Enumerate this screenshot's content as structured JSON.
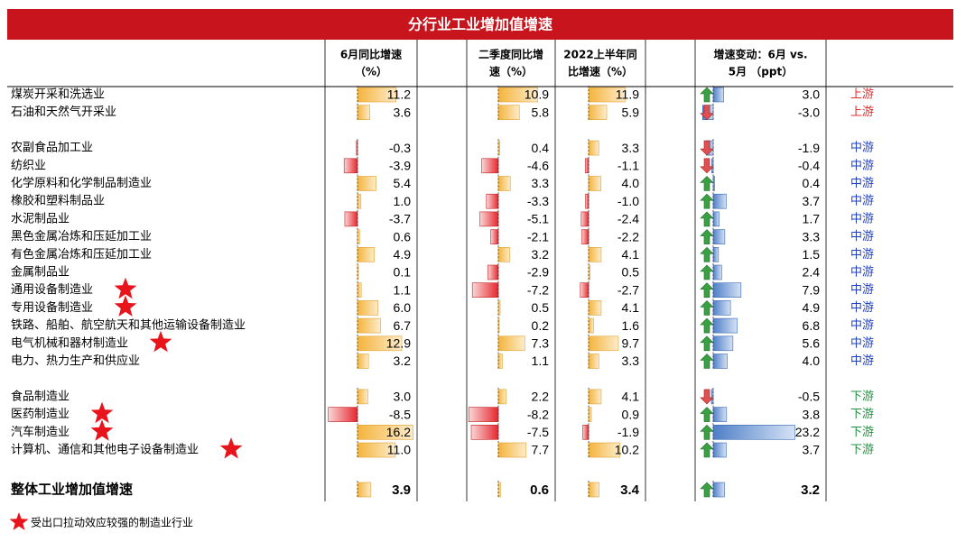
{
  "header": {
    "title": "分行业工业增加值增速",
    "columns": [
      [
        "6月同比增速",
        "（%）"
      ],
      [
        "二季度同比增",
        "速（%）"
      ],
      [
        "2022上半年同",
        "比增速（%）"
      ],
      [
        "增速变动：6月 vs.",
        "5月 （ppt）"
      ]
    ]
  },
  "groups": [
    {
      "rows": [
        {
          "name": "煤炭开采和洗选业",
          "values": [
            "11.2",
            "10.9",
            "11.9",
            "3.0"
          ],
          "tier": "上游"
        },
        {
          "name": "石油和天然气开采业",
          "values": [
            "3.6",
            "5.8",
            "5.9",
            "-3.0"
          ],
          "tier": "上游"
        }
      ]
    },
    {
      "rows": [
        {
          "name": "农副食品加工业",
          "values": [
            "-0.3",
            "0.4",
            "3.3",
            "-1.9"
          ],
          "tier": "中游"
        },
        {
          "name": "纺织业",
          "values": [
            "-3.9",
            "-4.6",
            "-1.1",
            "-0.4"
          ],
          "tier": "中游"
        },
        {
          "name": "化学原料和化学制品制造业",
          "values": [
            "5.4",
            "3.3",
            "4.0",
            "0.4"
          ],
          "tier": "中游"
        },
        {
          "name": "橡胶和塑料制品业",
          "values": [
            "1.0",
            "-3.3",
            "-1.0",
            "3.7"
          ],
          "tier": "中游"
        },
        {
          "name": "水泥制品业",
          "values": [
            "-3.7",
            "-5.1",
            "-2.4",
            "1.7"
          ],
          "tier": "中游"
        },
        {
          "name": "黑色金属冶炼和压延加工业",
          "values": [
            "0.6",
            "-2.1",
            "-2.2",
            "3.3"
          ],
          "tier": "中游"
        },
        {
          "name": "有色金属冶炼和压延加工业",
          "values": [
            "4.9",
            "3.2",
            "4.1",
            "1.5"
          ],
          "tier": "中游"
        },
        {
          "name": "金属制品业",
          "values": [
            "0.1",
            "-2.9",
            "0.5",
            "2.4"
          ],
          "tier": "中游"
        },
        {
          "name": "通用设备制造业",
          "values": [
            "1.1",
            "-7.2",
            "-2.7",
            "7.9"
          ],
          "tier": "中游",
          "star": true
        },
        {
          "name": "专用设备制造业",
          "values": [
            "6.0",
            "0.5",
            "4.1",
            "4.9"
          ],
          "tier": "中游",
          "star": true
        },
        {
          "name": "铁路、船舶、航空航天和其他运输设备制造业",
          "values": [
            "6.7",
            "0.2",
            "1.6",
            "6.8"
          ],
          "tier": "中游"
        },
        {
          "name": "电气机械和器材制造业",
          "values": [
            "12.9",
            "7.3",
            "9.7",
            "5.6"
          ],
          "tier": "中游",
          "star": true
        },
        {
          "name": "电力、热力生产和供应业",
          "values": [
            "3.2",
            "1.1",
            "3.3",
            "4.0"
          ],
          "tier": "中游"
        }
      ]
    },
    {
      "rows": [
        {
          "name": "食品制造业",
          "values": [
            "3.0",
            "2.2",
            "4.1",
            "-0.5"
          ],
          "tier": "下游"
        },
        {
          "name": "医药制造业",
          "values": [
            "-8.5",
            "-8.2",
            "0.9",
            "3.8"
          ],
          "tier": "下游",
          "star": true
        },
        {
          "name": "汽车制造业",
          "values": [
            "16.2",
            "-7.5",
            "-1.9",
            "23.2"
          ],
          "tier": "下游",
          "star": true
        },
        {
          "name": "计算机、通信和其他电子设备制造业",
          "values": [
            "11.0",
            "7.7",
            "10.2",
            "3.7"
          ],
          "tier": "下游",
          "star": true
        }
      ]
    }
  ],
  "total": {
    "name": "整体工业增加值增速",
    "values": [
      "3.9",
      "0.6",
      "3.4",
      "3.2"
    ]
  },
  "footnote": "受出口拉动效应较强的制造业行业"
}
